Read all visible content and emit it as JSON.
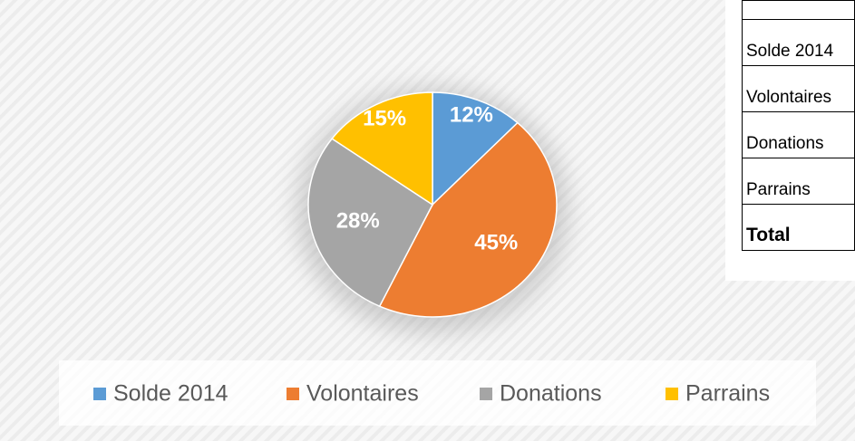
{
  "chart_data": {
    "type": "pie",
    "categories": [
      "Solde 2014",
      "Volontaires",
      "Donations",
      "Parrains"
    ],
    "values": [
      12,
      45,
      28,
      15
    ],
    "value_labels": [
      "12%",
      "45%",
      "28%",
      "15%"
    ],
    "colors": [
      "#5b9bd5",
      "#ed7d31",
      "#a5a5a5",
      "#ffc000"
    ],
    "legend": "bottom"
  },
  "table": {
    "rows": [
      [
        "Solde 2014"
      ],
      [
        "Volontaires"
      ],
      [
        "Donations"
      ],
      [
        "Parrains"
      ],
      [
        "Total"
      ]
    ]
  }
}
